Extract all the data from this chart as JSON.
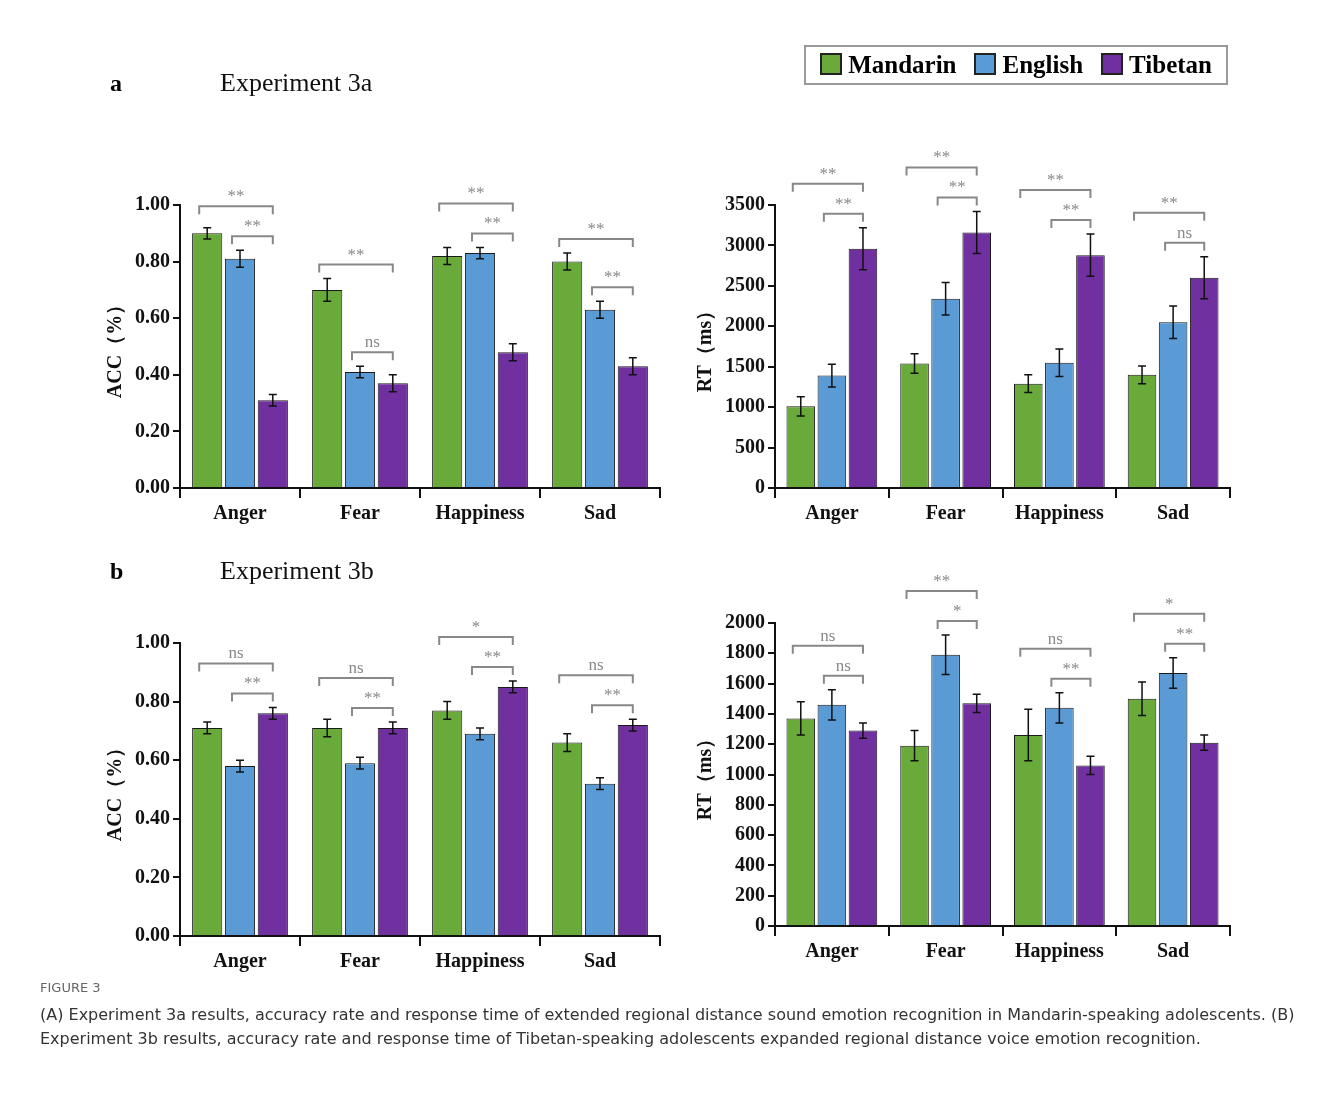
{
  "chart_data": [
    {
      "type": "bar",
      "title": "Experiment 3a",
      "ylabel": "ACC（%）",
      "categories": [
        "Anger",
        "Fear",
        "Happiness",
        "Sad"
      ],
      "series": [
        {
          "color": "#6aaa3a",
          "values": [
            0.9,
            0.7,
            0.82,
            0.8
          ],
          "errors": [
            0.02,
            0.04,
            0.03,
            0.03
          ]
        },
        {
          "color": "#5b9bd5",
          "values": [
            0.81,
            0.41,
            0.83,
            0.63
          ],
          "errors": [
            0.03,
            0.02,
            0.02,
            0.03
          ]
        },
        {
          "color": "#7030a0",
          "values": [
            0.31,
            0.37,
            0.48,
            0.43
          ],
          "errors": [
            0.02,
            0.03,
            0.03,
            0.03
          ]
        }
      ],
      "ylim": [
        0,
        1
      ],
      "yticks": [
        {
          "value": 0,
          "label": "0.00"
        },
        {
          "value": 0.2,
          "label": "0.20"
        },
        {
          "value": 0.4,
          "label": "0.40"
        },
        {
          "value": 0.6,
          "label": "0.60"
        },
        {
          "value": 0.8,
          "label": "0.80"
        },
        {
          "value": 1,
          "label": "1.00"
        }
      ],
      "grid": false,
      "legend": false,
      "annotations": [
        "a",
        "**",
        "**",
        "**",
        "ns",
        "**",
        "**",
        "**",
        "**"
      ]
    },
    {
      "type": "bar",
      "ylabel": "RT（ms）",
      "categories": [
        "Anger",
        "Fear",
        "Happiness",
        "Sad"
      ],
      "series": [
        {
          "name": "Mandarin",
          "color": "#6aaa3a",
          "values": [
            1010,
            1540,
            1290,
            1400
          ],
          "errors": [
            120,
            120,
            110,
            110
          ]
        },
        {
          "name": "English",
          "color": "#5b9bd5",
          "values": [
            1390,
            2340,
            1550,
            2050
          ],
          "errors": [
            140,
            200,
            170,
            200
          ]
        },
        {
          "name": "Tibetan",
          "color": "#7030a0",
          "values": [
            2960,
            3160,
            2880,
            2600
          ],
          "errors": [
            260,
            260,
            260,
            260
          ]
        }
      ],
      "ylim": [
        0,
        3500
      ],
      "yticks": [
        0,
        500,
        1000,
        1500,
        2000,
        2500,
        3000,
        3500
      ],
      "grid": false,
      "legend": "top",
      "annotations": [
        "**",
        "**",
        "**",
        "**",
        "**",
        "**",
        "**",
        "ns"
      ]
    },
    {
      "type": "bar",
      "title": "Experiment 3b",
      "ylabel": "ACC（%）",
      "categories": [
        "Anger",
        "Fear",
        "Happiness",
        "Sad"
      ],
      "series": [
        {
          "color": "#6aaa3a",
          "values": [
            0.71,
            0.71,
            0.77,
            0.66
          ],
          "errors": [
            0.02,
            0.03,
            0.03,
            0.03
          ]
        },
        {
          "color": "#5b9bd5",
          "values": [
            0.58,
            0.59,
            0.69,
            0.52
          ],
          "errors": [
            0.02,
            0.02,
            0.02,
            0.02
          ]
        },
        {
          "color": "#7030a0",
          "values": [
            0.76,
            0.71,
            0.85,
            0.72
          ],
          "errors": [
            0.02,
            0.02,
            0.02,
            0.02
          ]
        }
      ],
      "ylim": [
        0,
        1
      ],
      "yticks": [
        {
          "value": 0,
          "label": "0.00"
        },
        {
          "value": 0.2,
          "label": "0.20"
        },
        {
          "value": 0.4,
          "label": "0.40"
        },
        {
          "value": 0.6,
          "label": "0.60"
        },
        {
          "value": 0.8,
          "label": "0.80"
        },
        {
          "value": 1,
          "label": "1.00"
        }
      ],
      "grid": false,
      "legend": false,
      "annotations": [
        "b",
        "ns",
        "**",
        "ns",
        "**",
        "*",
        "**",
        "ns",
        "**"
      ]
    },
    {
      "type": "bar",
      "ylabel": "RT（ms）",
      "categories": [
        "Anger",
        "Fear",
        "Happiness",
        "Sad"
      ],
      "series": [
        {
          "color": "#6aaa3a",
          "values": [
            1370,
            1190,
            1260,
            1500
          ],
          "errors": [
            110,
            100,
            170,
            110
          ]
        },
        {
          "color": "#5b9bd5",
          "values": [
            1460,
            1790,
            1440,
            1670
          ],
          "errors": [
            100,
            130,
            100,
            100
          ]
        },
        {
          "color": "#7030a0",
          "values": [
            1290,
            1470,
            1060,
            1210
          ],
          "errors": [
            50,
            60,
            60,
            50
          ]
        }
      ],
      "ylim": [
        0,
        2000
      ],
      "yticks": [
        0,
        200,
        400,
        600,
        800,
        1000,
        1200,
        1400,
        1600,
        1800,
        2000
      ],
      "grid": false,
      "legend": false,
      "annotations": [
        "ns",
        "ns",
        "**",
        "*",
        "ns",
        "**",
        "*",
        "**",
        "FIGURE 3",
        "(A) Experiment 3a results, accuracy rate and response time of extended regional distance sound emotion recognition in Mandarin-speaking adolescents. (B) Experiment 3b results, accuracy rate and response time of Tibetan-speaking adolescents expanded regional distance voice emotion recognition."
      ]
    }
  ]
}
